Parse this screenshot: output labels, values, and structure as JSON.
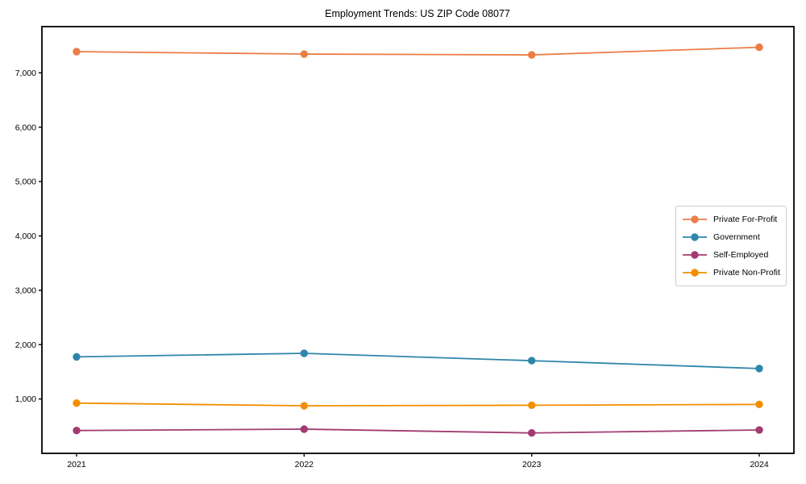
{
  "chart_data": {
    "type": "line",
    "title": "Employment Trends: US ZIP Code 08077",
    "xlabel": "",
    "ylabel": "",
    "x": [
      2021,
      2022,
      2023,
      2024
    ],
    "xticklabels": [
      "2021",
      "2022",
      "2023",
      "2024"
    ],
    "yticks": [
      {
        "value": 1000,
        "label": "1,000"
      },
      {
        "value": 2000,
        "label": "2,000"
      },
      {
        "value": 3000,
        "label": "3,000"
      },
      {
        "value": 4000,
        "label": "4,000"
      },
      {
        "value": 5000,
        "label": "5,000"
      },
      {
        "value": 6000,
        "label": "6,000"
      },
      {
        "value": 7000,
        "label": "7,000"
      }
    ],
    "ylim": [
      0,
      7850
    ],
    "grid": false,
    "marker": "o",
    "legend_position": "center-right",
    "legend_border_color": "#cccccc",
    "axes_color": "#000000",
    "series": [
      {
        "name": "Private For-Profit",
        "color": "#EB7D46",
        "values": [
          7390,
          7345,
          7330,
          7470
        ]
      },
      {
        "name": "Government",
        "color": "#2E86AB",
        "values": [
          1775,
          1840,
          1705,
          1560
        ]
      },
      {
        "name": "Self-Employed",
        "color": "#A23B72",
        "values": [
          420,
          445,
          375,
          430
        ]
      },
      {
        "name": "Private Non-Profit",
        "color": "#F18F01",
        "values": [
          925,
          875,
          885,
          900
        ]
      }
    ]
  }
}
